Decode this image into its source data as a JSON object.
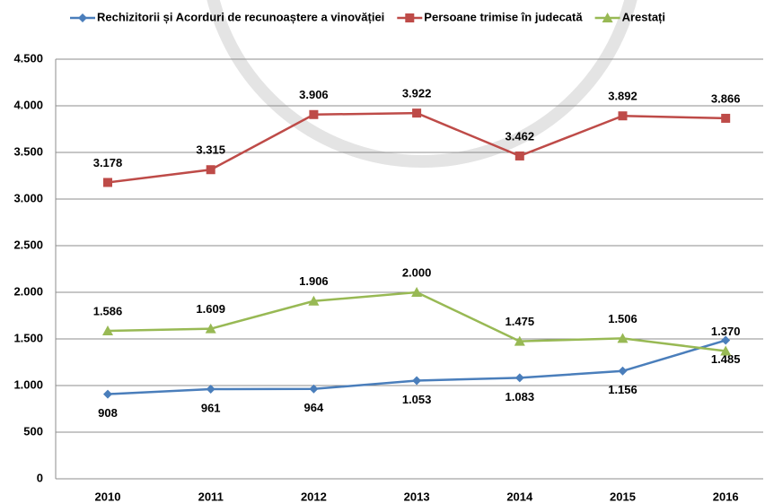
{
  "chart_data": {
    "type": "line",
    "categories": [
      "2010",
      "2011",
      "2012",
      "2013",
      "2014",
      "2015",
      "2016"
    ],
    "series": [
      {
        "name": "Rechizitorii și Acorduri de recunoaștere a vinovăției",
        "color": "#4a7ebb",
        "marker": "diamond",
        "label_position": "below",
        "values": [
          908,
          961,
          964,
          1053,
          1083,
          1156,
          1485
        ],
        "value_labels": [
          "908",
          "961",
          "964",
          "1.053",
          "1.083",
          "1.156",
          "1.485"
        ]
      },
      {
        "name": "Persoane trimise în judecată",
        "color": "#be4b48",
        "marker": "square",
        "label_position": "above",
        "values": [
          3178,
          3315,
          3906,
          3922,
          3462,
          3892,
          3866
        ],
        "value_labels": [
          "3.178",
          "3.315",
          "3.906",
          "3.922",
          "3.462",
          "3.892",
          "3.866"
        ]
      },
      {
        "name": "Arestați",
        "color": "#98b954",
        "marker": "triangle",
        "label_position": "above",
        "values": [
          1586,
          1609,
          1906,
          2000,
          1475,
          1506,
          1370
        ],
        "value_labels": [
          "1.586",
          "1.609",
          "1.906",
          "2.000",
          "1.475",
          "1.506",
          "1.370"
        ]
      }
    ],
    "ylim": [
      0,
      4500
    ],
    "yticks": [
      0,
      500,
      {
        "value": 1000,
        "label": "1.000"
      },
      {
        "value": 1500,
        "label": "1.500"
      },
      {
        "value": 2000,
        "label": "2.000"
      },
      {
        "value": 2500,
        "label": "2.500"
      },
      {
        "value": 3000,
        "label": "3.000"
      },
      {
        "value": 3500,
        "label": "3.500"
      },
      {
        "value": 4000,
        "label": "4.000"
      },
      {
        "value": 4500,
        "label": "4.500"
      }
    ],
    "grid": true,
    "legend": "top"
  }
}
